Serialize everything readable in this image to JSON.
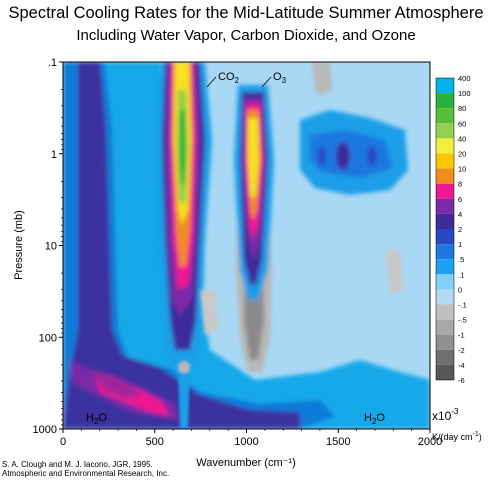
{
  "title": "Spectral Cooling Rates for the Mid-Latitude Summer Atmosphere",
  "subtitle": "Including Water Vapor, Carbon Dioxide, and Ozone",
  "credits": [
    "S. A. Clough and M. J. Iacono, JGR, 1995.",
    "Atmospheric and Environmental Research, Inc."
  ],
  "chart_data": {
    "type": "heatmap",
    "xlabel": "Wavenumber (cm⁻¹)",
    "ylabel": "Pressure (mb)",
    "xlim": [
      0,
      2000
    ],
    "ylim": [
      0.1,
      1000
    ],
    "y_scale": "log",
    "y_inverted": true,
    "x_ticks": [
      0,
      500,
      1000,
      1500,
      2000
    ],
    "y_ticks": [
      ".1",
      "1",
      "10",
      "100",
      "1000"
    ],
    "colorbar": {
      "levels": [
        "400",
        "100",
        "80",
        "60",
        "40",
        "20",
        "10",
        "8",
        "6",
        "4",
        "2",
        "1",
        ".5",
        ".1",
        "0",
        "-.1",
        "-.5",
        "-1",
        "-2",
        "-4",
        "-6"
      ],
      "colors": [
        "#00a0e0",
        "#00b4e8",
        "#2cb040",
        "#58c038",
        "#94d050",
        "#f0f040",
        "#f8c800",
        "#f08c20",
        "#f01890",
        "#7a2ca8",
        "#3c2c9c",
        "#2848c0",
        "#1e78e0",
        "#1ca0f0",
        "#80d0f8",
        "#b0daf2",
        "#c0c0c0",
        "#a8a8a8",
        "#909090",
        "#707070",
        "#585858"
      ],
      "unit_scale": "x10",
      "unit_exponent": "-3",
      "unit": "K/(day cm",
      "unit_sup": "-1",
      "unit_close": ")"
    },
    "annotations": [
      {
        "base": "CO",
        "sub": "2"
      },
      {
        "base": "O",
        "sub": "3"
      },
      {
        "base": "H",
        "sub": "2",
        "after": "O"
      },
      {
        "base": "H",
        "sub": "2",
        "after": "O"
      }
    ]
  }
}
